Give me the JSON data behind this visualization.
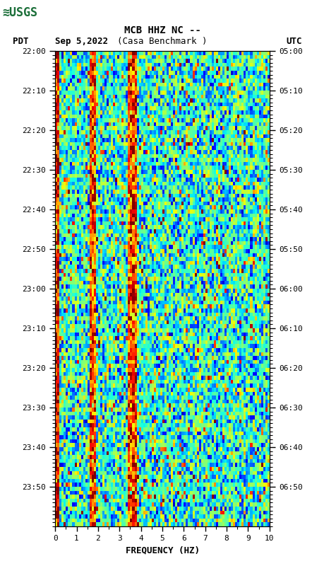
{
  "title_line1": "MCB HHZ NC --",
  "title_line2": "(Casa Benchmark )",
  "label_left": "PDT",
  "label_date": "Sep 5,2022",
  "label_right": "UTC",
  "time_start_pdt": "22:00",
  "time_end_pdt": "23:50",
  "time_start_utc": "05:00",
  "time_end_utc": "06:50",
  "freq_min": 0,
  "freq_max": 10,
  "xlabel": "FREQUENCY (HZ)",
  "ytick_labels_left": [
    "22:00",
    "22:10",
    "22:20",
    "22:30",
    "22:40",
    "22:50",
    "23:00",
    "23:10",
    "23:20",
    "23:30",
    "23:40",
    "23:50"
  ],
  "ytick_labels_right": [
    "05:00",
    "05:10",
    "05:20",
    "05:30",
    "05:40",
    "05:50",
    "06:00",
    "06:10",
    "06:20",
    "06:30",
    "06:40",
    "06:50"
  ],
  "xtick_positions": [
    0,
    1,
    2,
    3,
    4,
    5,
    6,
    7,
    8,
    9,
    10
  ],
  "bg_color": "#ffffff",
  "spectrogram_seed": 42,
  "n_freq_bins": 100,
  "n_time_bins": 120,
  "fig_width": 4.6,
  "fig_height": 8.0
}
